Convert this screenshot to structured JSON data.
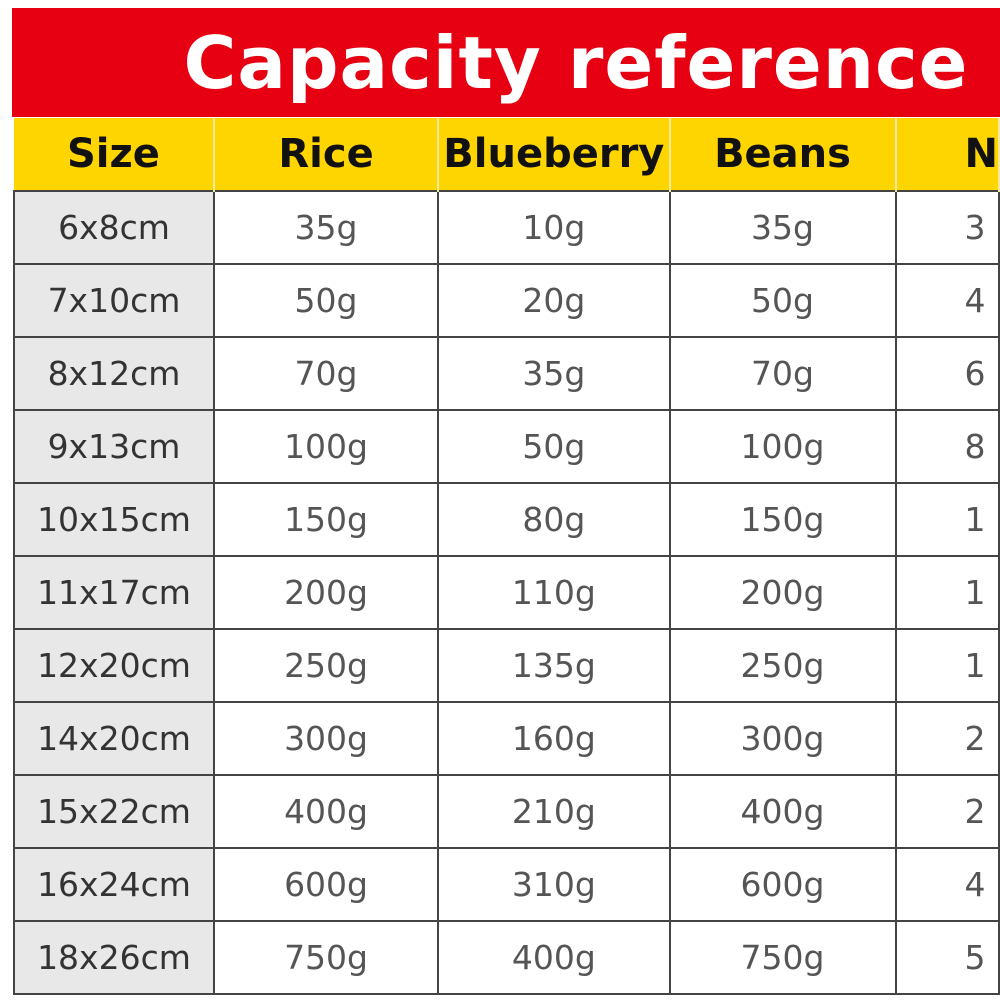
{
  "title": "Capacity reference",
  "colors": {
    "banner": "#e60012",
    "header": "#ffd500",
    "size_column": "#e8e8e8"
  },
  "headers": [
    "Size",
    "Rice",
    "Blueberry",
    "Beans",
    "N"
  ],
  "rows": [
    [
      "6x8cm",
      "35g",
      "10g",
      "35g",
      "3"
    ],
    [
      "7x10cm",
      "50g",
      "20g",
      "50g",
      "4"
    ],
    [
      "8x12cm",
      "70g",
      "35g",
      "70g",
      "6"
    ],
    [
      "9x13cm",
      "100g",
      "50g",
      "100g",
      "8"
    ],
    [
      "10x15cm",
      "150g",
      "80g",
      "150g",
      "1"
    ],
    [
      "11x17cm",
      "200g",
      "110g",
      "200g",
      "1"
    ],
    [
      "12x20cm",
      "250g",
      "135g",
      "250g",
      "1"
    ],
    [
      "14x20cm",
      "300g",
      "160g",
      "300g",
      "2"
    ],
    [
      "15x22cm",
      "400g",
      "210g",
      "400g",
      "2"
    ],
    [
      "16x24cm",
      "600g",
      "310g",
      "600g",
      "4"
    ],
    [
      "18x26cm",
      "750g",
      "400g",
      "750g",
      "5"
    ]
  ]
}
